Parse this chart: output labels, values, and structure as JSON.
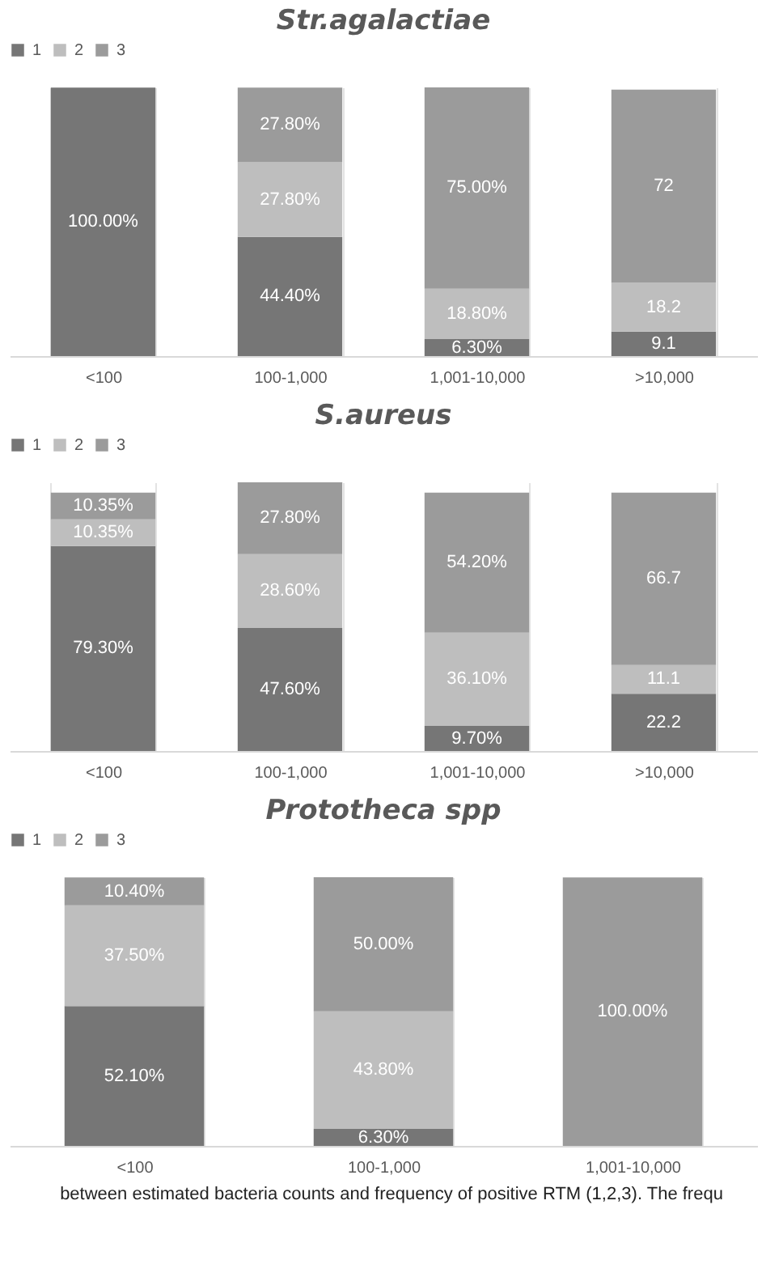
{
  "chart_data": [
    {
      "type": "bar",
      "title": "Str.agalactiae",
      "stacked": true,
      "legend": "top",
      "grid": "x",
      "tick_labels": "x",
      "categories": [
        "<100",
        "100-1,000",
        "1,001-10,000",
        ">10,000"
      ],
      "series": [
        {
          "name": "1",
          "color": "#767676",
          "values": [
            100,
            44.4,
            6.3,
            9.1
          ],
          "value_labels": [
            "100.00%",
            "44.40%",
            "6.30%",
            "9.1"
          ]
        },
        {
          "name": "2",
          "color": "#bebebe",
          "values": [
            null,
            27.8,
            18.8,
            18.2
          ],
          "value_labels": [
            null,
            "27.80%",
            "18.80%",
            "18.2"
          ]
        },
        {
          "name": "3",
          "color": "#9b9b9b",
          "values": [
            null,
            27.8,
            75,
            72
          ],
          "value_labels": [
            null,
            "27.80%",
            "75.00%",
            "72"
          ]
        }
      ]
    },
    {
      "type": "bar",
      "title": "S.aureus",
      "stacked": true,
      "legend": "top",
      "grid": "x",
      "tick_labels": "x",
      "categories": [
        "<100",
        "100-1,000",
        "1,001-10,000",
        ">10,000"
      ],
      "series": [
        {
          "name": "1",
          "color": "#767676",
          "values": [
            79.3,
            47.6,
            9.7,
            22.2
          ],
          "value_labels": [
            "79.30%",
            "47.60%",
            "9.70%",
            "22.2"
          ]
        },
        {
          "name": "2",
          "color": "#bebebe",
          "values": [
            10.35,
            28.6,
            36.1,
            11.1
          ],
          "value_labels": [
            "10.35%",
            "28.60%",
            "36.10%",
            "11.1"
          ]
        },
        {
          "name": "3",
          "color": "#9b9b9b",
          "values": [
            10.35,
            27.8,
            54.2,
            66.7
          ],
          "value_labels": [
            "10.35%",
            "27.80%",
            "54.20%",
            "66.7"
          ]
        }
      ]
    },
    {
      "type": "bar",
      "title": "Prototheca spp",
      "stacked": true,
      "legend": "top",
      "grid": "x",
      "tick_labels": "x",
      "categories": [
        "<100",
        "100-1,000",
        "1,001-10,000"
      ],
      "series": [
        {
          "name": "1",
          "color": "#767676",
          "values": [
            52.1,
            6.3,
            null
          ],
          "value_labels": [
            "52.10%",
            "6.30%",
            null
          ]
        },
        {
          "name": "2",
          "color": "#bebebe",
          "values": [
            37.5,
            43.8,
            null
          ],
          "value_labels": [
            "37.50%",
            "43.80%",
            null
          ]
        },
        {
          "name": "3",
          "color": "#9b9b9b",
          "values": [
            10.4,
            50,
            100
          ],
          "value_labels": [
            "10.40%",
            "50.00%",
            "100.00%"
          ]
        }
      ],
      "annotations": [
        "between estimated bacteria counts and frequency of positive RTM (1,2,3). The frequ"
      ]
    }
  ]
}
